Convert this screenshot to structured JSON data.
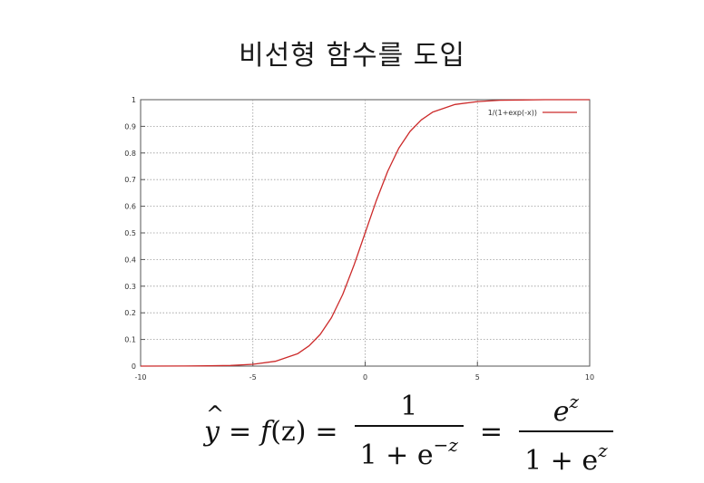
{
  "page": {
    "title": "비선형 함수를 도입"
  },
  "chart_data": {
    "type": "line",
    "title": "",
    "xlabel": "",
    "ylabel": "",
    "xlim": [
      -10,
      10
    ],
    "ylim": [
      0,
      1
    ],
    "grid": true,
    "legend_position": "top-right",
    "x_ticks": [
      "-10",
      "-5",
      "0",
      "5",
      "10"
    ],
    "y_ticks": [
      "0",
      "0.1",
      "0.2",
      "0.3",
      "0.4",
      "0.5",
      "0.6",
      "0.7",
      "0.8",
      "0.9",
      "1"
    ],
    "series": [
      {
        "name": "1/(1+exp(-x))",
        "color": "#cc2a2a",
        "x": [
          -10,
          -8,
          -7,
          -6,
          -5,
          -4,
          -3,
          -2.5,
          -2,
          -1.5,
          -1,
          -0.5,
          0,
          0.5,
          1,
          1.5,
          2,
          2.5,
          3,
          4,
          5,
          6,
          7,
          8,
          10
        ],
        "y": [
          0.0,
          0.0003,
          0.0009,
          0.0025,
          0.0067,
          0.018,
          0.047,
          0.076,
          0.119,
          0.182,
          0.269,
          0.378,
          0.5,
          0.622,
          0.731,
          0.818,
          0.881,
          0.924,
          0.953,
          0.982,
          0.993,
          0.998,
          0.999,
          1.0,
          1.0
        ]
      }
    ]
  },
  "formula": {
    "y": "y",
    "hat": "^",
    "eq1": "=",
    "f": "f",
    "arg": "(z)",
    "eq2": "=",
    "frac1_num": "1",
    "frac1_den_a": "1 + e",
    "frac1_den_exp": "−z",
    "eq3": "=",
    "frac2_num_e": "e",
    "frac2_num_exp": "z",
    "frac2_den_a": "1 + e",
    "frac2_den_exp": "z"
  }
}
